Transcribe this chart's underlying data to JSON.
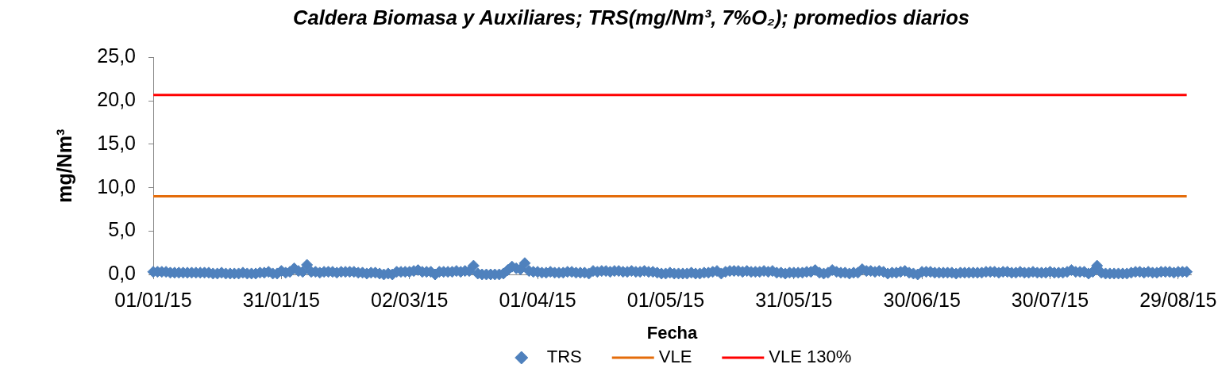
{
  "chart_data": {
    "type": "scatter",
    "title": "Caldera Biomasa y Auxiliares; TRS(mg/Nm³, 7%O₂); promedios diarios",
    "xlabel": "Fecha",
    "ylabel": "mg/Nm³",
    "x": [
      "2015-01-01",
      "2015-01-02",
      "2015-01-03",
      "2015-01-04",
      "2015-01-05",
      "2015-01-06",
      "2015-01-07",
      "2015-01-08",
      "2015-01-09",
      "2015-01-10",
      "2015-01-11",
      "2015-01-12",
      "2015-01-13",
      "2015-01-14",
      "2015-01-15",
      "2015-01-16",
      "2015-01-17",
      "2015-01-18",
      "2015-01-19",
      "2015-01-20",
      "2015-01-21",
      "2015-01-22",
      "2015-01-23",
      "2015-01-24",
      "2015-01-25",
      "2015-01-26",
      "2015-01-27",
      "2015-01-28",
      "2015-01-29",
      "2015-01-30",
      "2015-01-31",
      "2015-02-01",
      "2015-02-02",
      "2015-02-03",
      "2015-02-04",
      "2015-02-05",
      "2015-02-06",
      "2015-02-07",
      "2015-02-08",
      "2015-02-09",
      "2015-02-10",
      "2015-02-11",
      "2015-02-12",
      "2015-02-13",
      "2015-02-14",
      "2015-02-15",
      "2015-02-16",
      "2015-02-17",
      "2015-02-18",
      "2015-02-19",
      "2015-02-20",
      "2015-02-21",
      "2015-02-22",
      "2015-02-23",
      "2015-02-24",
      "2015-02-25",
      "2015-02-26",
      "2015-02-27",
      "2015-02-28",
      "2015-03-01",
      "2015-03-02",
      "2015-03-03",
      "2015-03-04",
      "2015-03-05",
      "2015-03-06",
      "2015-03-07",
      "2015-03-08",
      "2015-03-09",
      "2015-03-10",
      "2015-03-11",
      "2015-03-12",
      "2015-03-13",
      "2015-03-14",
      "2015-03-15",
      "2015-03-16",
      "2015-03-17",
      "2015-03-18",
      "2015-03-19",
      "2015-03-20",
      "2015-03-21",
      "2015-03-22",
      "2015-03-23",
      "2015-03-24",
      "2015-03-25",
      "2015-03-26",
      "2015-03-27",
      "2015-03-28",
      "2015-03-29",
      "2015-03-30",
      "2015-03-31",
      "2015-04-01",
      "2015-04-02",
      "2015-04-03",
      "2015-04-04",
      "2015-04-05",
      "2015-04-06",
      "2015-04-07",
      "2015-04-08",
      "2015-04-09",
      "2015-04-10",
      "2015-04-11",
      "2015-04-12",
      "2015-04-13",
      "2015-04-14",
      "2015-04-15",
      "2015-04-16",
      "2015-04-17",
      "2015-04-18",
      "2015-04-19",
      "2015-04-20",
      "2015-04-21",
      "2015-04-22",
      "2015-04-23",
      "2015-04-24",
      "2015-04-25",
      "2015-04-26",
      "2015-04-27",
      "2015-04-28",
      "2015-04-29",
      "2015-04-30",
      "2015-05-01",
      "2015-05-02",
      "2015-05-03",
      "2015-05-04",
      "2015-05-05",
      "2015-05-06",
      "2015-05-07",
      "2015-05-08",
      "2015-05-09",
      "2015-05-10",
      "2015-05-11",
      "2015-05-12",
      "2015-05-13",
      "2015-05-14",
      "2015-05-15",
      "2015-05-16",
      "2015-05-17",
      "2015-05-18",
      "2015-05-19",
      "2015-05-20",
      "2015-05-21",
      "2015-05-22",
      "2015-05-23",
      "2015-05-24",
      "2015-05-25",
      "2015-05-26",
      "2015-05-27",
      "2015-05-28",
      "2015-05-29",
      "2015-05-30",
      "2015-05-31",
      "2015-06-01",
      "2015-06-02",
      "2015-06-03",
      "2015-06-04",
      "2015-06-05",
      "2015-06-06",
      "2015-06-07",
      "2015-06-08",
      "2015-06-09",
      "2015-06-10",
      "2015-06-11",
      "2015-06-12",
      "2015-06-13",
      "2015-06-14",
      "2015-06-15",
      "2015-06-16",
      "2015-06-17",
      "2015-06-18",
      "2015-06-19",
      "2015-06-20",
      "2015-06-21",
      "2015-06-22",
      "2015-06-23",
      "2015-06-24",
      "2015-06-25",
      "2015-06-26",
      "2015-06-27",
      "2015-06-28",
      "2015-06-29",
      "2015-06-30",
      "2015-07-01",
      "2015-07-02",
      "2015-07-03",
      "2015-07-04",
      "2015-07-05",
      "2015-07-06",
      "2015-07-07",
      "2015-07-08",
      "2015-07-09",
      "2015-07-10",
      "2015-07-11",
      "2015-07-12",
      "2015-07-13",
      "2015-07-14",
      "2015-07-15",
      "2015-07-16",
      "2015-07-17",
      "2015-07-18",
      "2015-07-19",
      "2015-07-20",
      "2015-07-21",
      "2015-07-22",
      "2015-07-23",
      "2015-07-24",
      "2015-07-25",
      "2015-07-26",
      "2015-07-27",
      "2015-07-28",
      "2015-07-29",
      "2015-07-30",
      "2015-07-31",
      "2015-08-01",
      "2015-08-02",
      "2015-08-03",
      "2015-08-04",
      "2015-08-05",
      "2015-08-06",
      "2015-08-07",
      "2015-08-08",
      "2015-08-09",
      "2015-08-10",
      "2015-08-11",
      "2015-08-12",
      "2015-08-13",
      "2015-08-14",
      "2015-08-15",
      "2015-08-16",
      "2015-08-17",
      "2015-08-18",
      "2015-08-19",
      "2015-08-20",
      "2015-08-21",
      "2015-08-22",
      "2015-08-23",
      "2015-08-24",
      "2015-08-25",
      "2015-08-26",
      "2015-08-27",
      "2015-08-28",
      "2015-08-29",
      "2015-08-30",
      "2015-08-31"
    ],
    "series": [
      {
        "name": "TRS",
        "type": "scatter",
        "marker": "diamond",
        "color": "#4f81bd",
        "values": [
          0.3,
          0.3,
          0.3,
          0.3,
          0.2,
          0.2,
          0.2,
          0.2,
          0.2,
          0.2,
          0.2,
          0.2,
          0.2,
          0.2,
          0.1,
          0.1,
          0.2,
          0.1,
          0.1,
          0.1,
          0.1,
          0.2,
          0.1,
          0.1,
          0.1,
          0.2,
          0.2,
          0.3,
          0.1,
          0.1,
          0.4,
          0.2,
          0.3,
          0.7,
          0.4,
          0.3,
          1.1,
          0.3,
          0.3,
          0.2,
          0.3,
          0.3,
          0.3,
          0.2,
          0.3,
          0.3,
          0.3,
          0.3,
          0.2,
          0.2,
          0.1,
          0.2,
          0.2,
          0.1,
          0.0,
          0.1,
          0.0,
          0.3,
          0.3,
          0.3,
          0.3,
          0.4,
          0.5,
          0.3,
          0.3,
          0.3,
          0.0,
          0.3,
          0.3,
          0.3,
          0.3,
          0.4,
          0.3,
          0.4,
          0.4,
          1.0,
          0.1,
          0.0,
          0.0,
          0.0,
          0.0,
          0.0,
          0.1,
          0.5,
          0.9,
          0.7,
          0.6,
          1.3,
          0.4,
          0.3,
          0.3,
          0.2,
          0.2,
          0.3,
          0.2,
          0.2,
          0.2,
          0.3,
          0.3,
          0.2,
          0.2,
          0.2,
          0.1,
          0.4,
          0.3,
          0.4,
          0.4,
          0.3,
          0.4,
          0.4,
          0.3,
          0.3,
          0.4,
          0.3,
          0.3,
          0.4,
          0.3,
          0.3,
          0.2,
          0.1,
          0.1,
          0.2,
          0.1,
          0.1,
          0.1,
          0.1,
          0.2,
          0.1,
          0.1,
          0.2,
          0.2,
          0.3,
          0.4,
          0.1,
          0.3,
          0.4,
          0.4,
          0.4,
          0.3,
          0.4,
          0.3,
          0.3,
          0.3,
          0.4,
          0.3,
          0.4,
          0.2,
          0.2,
          0.1,
          0.2,
          0.2,
          0.2,
          0.2,
          0.3,
          0.3,
          0.5,
          0.2,
          0.1,
          0.2,
          0.5,
          0.3,
          0.2,
          0.2,
          0.1,
          0.2,
          0.2,
          0.6,
          0.4,
          0.4,
          0.3,
          0.4,
          0.3,
          0.1,
          0.2,
          0.2,
          0.3,
          0.4,
          0.2,
          0.1,
          0.0,
          0.3,
          0.3,
          0.3,
          0.2,
          0.2,
          0.2,
          0.2,
          0.2,
          0.1,
          0.2,
          0.2,
          0.2,
          0.2,
          0.2,
          0.2,
          0.3,
          0.3,
          0.3,
          0.2,
          0.3,
          0.3,
          0.2,
          0.2,
          0.3,
          0.2,
          0.2,
          0.3,
          0.2,
          0.2,
          0.2,
          0.3,
          0.2,
          0.2,
          0.2,
          0.3,
          0.5,
          0.3,
          0.3,
          0.3,
          0.1,
          0.3,
          1.0,
          0.2,
          0.1,
          0.1,
          0.1,
          0.1,
          0.1,
          0.1,
          0.2,
          0.3,
          0.3,
          0.2,
          0.3,
          0.2,
          0.2,
          0.3,
          0.3,
          0.3,
          0.2,
          0.3,
          0.3,
          0.3
        ]
      },
      {
        "name": "VLE",
        "type": "line",
        "color": "#e46c0a",
        "x": [
          "2015-01-01",
          "2015-08-31"
        ],
        "values": [
          9.0,
          9.0
        ]
      },
      {
        "name": "VLE 130%",
        "type": "line",
        "color": "#ff0000",
        "x": [
          "2015-01-01",
          "2015-08-31"
        ],
        "values": [
          20.7,
          20.7
        ]
      }
    ],
    "xlim": [
      "2015-01-01",
      "2015-09-01"
    ],
    "xticks": [
      {
        "value": "2015-01-01",
        "label": "01/01/15"
      },
      {
        "value": "2015-01-31",
        "label": "31/01/15"
      },
      {
        "value": "2015-03-02",
        "label": "02/03/15"
      },
      {
        "value": "2015-04-01",
        "label": "01/04/15"
      },
      {
        "value": "2015-05-01",
        "label": "01/05/15"
      },
      {
        "value": "2015-05-31",
        "label": "31/05/15"
      },
      {
        "value": "2015-06-30",
        "label": "30/06/15"
      },
      {
        "value": "2015-07-30",
        "label": "30/07/15"
      },
      {
        "value": "2015-08-29",
        "label": "29/08/15"
      }
    ],
    "ylim": [
      0,
      25
    ],
    "yticks": [
      {
        "value": 0,
        "label": "0,0"
      },
      {
        "value": 5,
        "label": "5,0"
      },
      {
        "value": 10,
        "label": "10,0"
      },
      {
        "value": 15,
        "label": "15,0"
      },
      {
        "value": 20,
        "label": "20,0"
      },
      {
        "value": 25,
        "label": "25,0"
      }
    ],
    "grid": false,
    "legend": "bottom"
  }
}
